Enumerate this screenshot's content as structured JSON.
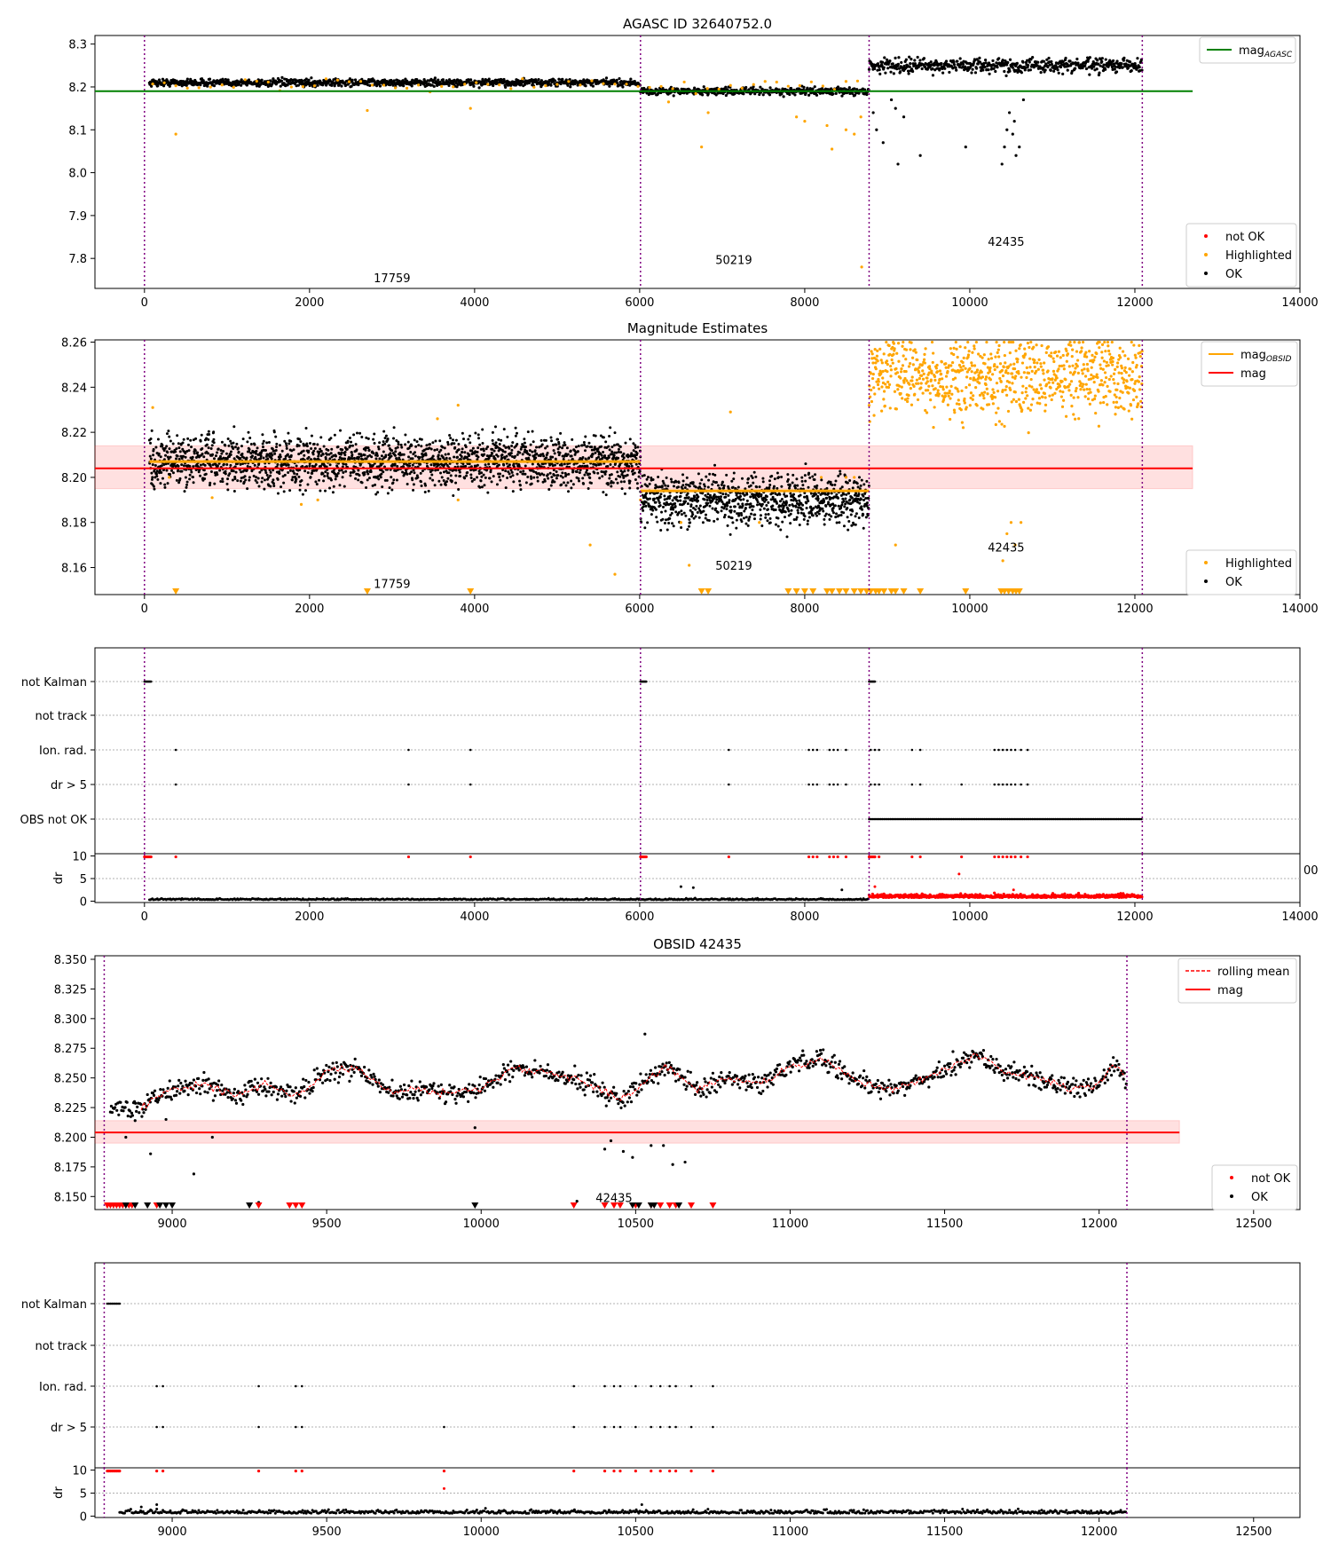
{
  "chart_data": [
    {
      "type": "scatter",
      "title": "AGASC ID 32640752.0",
      "xlim": [
        -600,
        14000
      ],
      "ylim": [
        7.73,
        8.32
      ],
      "xticks": [
        0,
        2000,
        4000,
        6000,
        8000,
        10000,
        12000,
        14000
      ],
      "yticks": [
        7.8,
        7.9,
        8.0,
        8.1,
        8.2,
        8.3
      ],
      "ytick_labels": [
        "7.8",
        "7.9",
        "8.0",
        "8.1",
        "8.2",
        "8.3"
      ],
      "obsid_boundaries": [
        0,
        6010,
        8780,
        12090
      ],
      "obsid_labels": [
        {
          "text": "17759",
          "x": 3000,
          "y": 7.755
        },
        {
          "text": "50219",
          "x": 7140,
          "y": 7.797
        },
        {
          "text": "42435",
          "x": 10440,
          "y": 7.84
        }
      ],
      "segments": [
        {
          "x": [
            60,
            6010
          ],
          "mean": 8.21,
          "spread": 0.006
        },
        {
          "x": [
            6010,
            8780
          ],
          "mean": 8.19,
          "spread": 0.006
        },
        {
          "x": [
            8780,
            12090
          ],
          "mean": 8.25,
          "spread": 0.012
        }
      ],
      "reference_line": {
        "name": "mag_AGASC",
        "value": 8.19,
        "x": [
          -600,
          12700
        ],
        "color": "#008000"
      },
      "highlighted_points": [
        [
          380,
          8.09
        ],
        [
          2700,
          8.145
        ],
        [
          3950,
          8.15
        ],
        [
          6350,
          8.165
        ],
        [
          6750,
          8.06
        ],
        [
          6830,
          8.14
        ],
        [
          7900,
          8.13
        ],
        [
          8000,
          8.12
        ],
        [
          8270,
          8.11
        ],
        [
          8330,
          8.055
        ],
        [
          8500,
          8.1
        ],
        [
          8600,
          8.09
        ],
        [
          8680,
          8.13
        ],
        [
          8690,
          7.78
        ]
      ],
      "dip_points": [
        [
          8830,
          8.14
        ],
        [
          8870,
          8.1
        ],
        [
          8950,
          8.07
        ],
        [
          9050,
          8.17
        ],
        [
          9100,
          8.15
        ],
        [
          9130,
          8.02
        ],
        [
          9200,
          8.13
        ],
        [
          9400,
          8.04
        ],
        [
          9950,
          8.06
        ],
        [
          10390,
          8.02
        ],
        [
          10420,
          8.06
        ],
        [
          10450,
          8.1
        ],
        [
          10480,
          8.14
        ],
        [
          10520,
          8.09
        ],
        [
          10540,
          8.12
        ],
        [
          10560,
          8.04
        ],
        [
          10600,
          8.06
        ],
        [
          10650,
          8.17
        ]
      ],
      "legends": [
        {
          "position": "upper right",
          "entries": [
            {
              "label": "mag",
              "subscript": "AGASC",
              "marker": "line",
              "color": "#008000"
            }
          ]
        },
        {
          "position": "lower right",
          "entries": [
            {
              "label": "not OK",
              "marker": "dot",
              "color": "#ff0000"
            },
            {
              "label": "Highlighted",
              "marker": "dot",
              "color": "#ffa500"
            },
            {
              "label": "OK",
              "marker": "dot",
              "color": "#000000"
            }
          ]
        }
      ]
    },
    {
      "type": "scatter",
      "title": "Magnitude Estimates",
      "xlim": [
        -600,
        14000
      ],
      "ylim": [
        8.148,
        8.261
      ],
      "xticks": [
        0,
        2000,
        4000,
        6000,
        8000,
        10000,
        12000,
        14000
      ],
      "yticks": [
        8.16,
        8.18,
        8.2,
        8.22,
        8.24,
        8.26
      ],
      "ytick_labels": [
        "8.16",
        "8.18",
        "8.20",
        "8.22",
        "8.24",
        "8.26"
      ],
      "obsid_boundaries": [
        0,
        6010,
        8780,
        12090
      ],
      "obsid_labels": [
        {
          "text": "17759",
          "x": 3000,
          "y": 8.153
        },
        {
          "text": "50219",
          "x": 7140,
          "y": 8.161
        },
        {
          "text": "42435",
          "x": 10440,
          "y": 8.169
        }
      ],
      "segments": [
        {
          "x": [
            60,
            6010
          ],
          "mean": 8.207,
          "spread": 0.008,
          "mag_obsid": 8.207
        },
        {
          "x": [
            6010,
            8780
          ],
          "mean": 8.19,
          "spread": 0.008,
          "mag_obsid": 8.194
        },
        {
          "x": [
            8780,
            12090
          ],
          "mean": 8.245,
          "spread": 0.012
        }
      ],
      "mag_line": {
        "name": "mag",
        "value": 8.204,
        "band": [
          8.195,
          8.214
        ],
        "x": [
          -600,
          12700
        ],
        "color": "#ff0000"
      },
      "highlighted_points": [
        [
          100,
          8.231
        ],
        [
          300,
          8.2
        ],
        [
          820,
          8.191
        ],
        [
          1900,
          8.188
        ],
        [
          2100,
          8.19
        ],
        [
          3550,
          8.226
        ],
        [
          3800,
          8.19
        ],
        [
          3800,
          8.232
        ],
        [
          5400,
          8.17
        ],
        [
          5700,
          8.157
        ],
        [
          6010,
          8.19
        ],
        [
          6500,
          8.18
        ],
        [
          6600,
          8.161
        ],
        [
          7100,
          8.229
        ],
        [
          7450,
          8.18
        ],
        [
          8200,
          8.2
        ],
        [
          8500,
          8.2
        ],
        [
          8600,
          8.2
        ]
      ],
      "dip_points": [
        [
          9100,
          8.17
        ],
        [
          10400,
          8.163
        ],
        [
          10450,
          8.175
        ],
        [
          10500,
          8.18
        ],
        [
          10550,
          8.17
        ],
        [
          10620,
          8.18
        ]
      ],
      "clipped_markers": [
        380,
        2700,
        3950,
        6750,
        6830,
        7800,
        7900,
        8000,
        8100,
        8270,
        8330,
        8420,
        8500,
        8600,
        8680,
        8750,
        8800,
        8860,
        8900,
        8960,
        9050,
        9100,
        9200,
        9400,
        9950,
        10380,
        10420,
        10470,
        10520,
        10560,
        10600
      ],
      "legends": [
        {
          "position": "upper right",
          "entries": [
            {
              "label": "mag",
              "subscript": "OBSID",
              "marker": "line",
              "color": "#ffa500"
            },
            {
              "label": "mag",
              "marker": "line",
              "color": "#ff0000"
            }
          ]
        },
        {
          "position": "lower right",
          "entries": [
            {
              "label": "Highlighted",
              "marker": "dot",
              "color": "#ffa500"
            },
            {
              "label": "OK",
              "marker": "dot",
              "color": "#000000"
            }
          ]
        }
      ]
    },
    {
      "type": "scatter",
      "title": "",
      "xlim": [
        -600,
        14000
      ],
      "xticks": [
        0,
        2000,
        4000,
        6000,
        8000,
        10000,
        12000,
        14000
      ],
      "flag_rows": [
        "not Kalman",
        "not track",
        "Ion. rad.",
        "dr > 5",
        "OBS not OK"
      ],
      "obsid_boundaries": [
        0,
        6010,
        8780,
        12090
      ],
      "not_kalman_ranges": [
        [
          0,
          80
        ],
        [
          6010,
          6080
        ],
        [
          8780,
          8850
        ]
      ],
      "ion_rad_x": [
        380,
        3200,
        3950,
        7080,
        8050,
        8100,
        8150,
        8300,
        8350,
        8400,
        8500,
        8800,
        8850,
        8900,
        9300,
        9400,
        10300,
        10350,
        10400,
        10450,
        10500,
        10550,
        10620,
        10700
      ],
      "dr5_x": [
        380,
        3200,
        3950,
        7080,
        8050,
        8100,
        8150,
        8300,
        8350,
        8400,
        8500,
        8800,
        8850,
        8900,
        9300,
        9400,
        9900,
        10300,
        10350,
        10400,
        10450,
        10500,
        10550,
        10620,
        10700
      ],
      "obs_not_ok_range": [
        8780,
        12090
      ],
      "dr_panel": {
        "ylabel": "dr",
        "ylim": [
          -0.3,
          10.5
        ],
        "yticks": [
          0,
          5,
          10
        ],
        "ytick_labels": [
          "0",
          "5",
          "10"
        ],
        "partial_label": "00"
      },
      "dr_outliers": [
        [
          6500,
          3.2
        ],
        [
          6650,
          3
        ],
        [
          8450,
          2.5
        ],
        [
          8850,
          3.2
        ],
        [
          9870,
          6
        ],
        [
          10530,
          2.5
        ]
      ]
    },
    {
      "type": "scatter",
      "title": "OBSID 42435",
      "xlim": [
        8750,
        12650
      ],
      "ylim": [
        8.139,
        8.353
      ],
      "xticks": [
        9000,
        9500,
        10000,
        10500,
        11000,
        11500,
        12000,
        12500
      ],
      "yticks": [
        8.15,
        8.175,
        8.2,
        8.225,
        8.25,
        8.275,
        8.3,
        8.325,
        8.35
      ],
      "ytick_labels": [
        "8.150",
        "8.175",
        "8.200",
        "8.225",
        "8.250",
        "8.275",
        "8.300",
        "8.325",
        "8.350"
      ],
      "obsid_boundaries": [
        8780,
        12090
      ],
      "obsid_labels": [
        {
          "text": "42435",
          "x": 10430,
          "y": 8.149
        }
      ],
      "mean_curve": [
        [
          8900,
          8.225
        ],
        [
          8950,
          8.235
        ],
        [
          9000,
          8.24
        ],
        [
          9100,
          8.245
        ],
        [
          9200,
          8.235
        ],
        [
          9300,
          8.245
        ],
        [
          9400,
          8.235
        ],
        [
          9500,
          8.256
        ],
        [
          9600,
          8.258
        ],
        [
          9700,
          8.238
        ],
        [
          9800,
          8.24
        ],
        [
          9900,
          8.237
        ],
        [
          10000,
          8.24
        ],
        [
          10100,
          8.258
        ],
        [
          10200,
          8.255
        ],
        [
          10300,
          8.25
        ],
        [
          10400,
          8.238
        ],
        [
          10450,
          8.232
        ],
        [
          10500,
          8.24
        ],
        [
          10600,
          8.26
        ],
        [
          10700,
          8.24
        ],
        [
          10800,
          8.25
        ],
        [
          10900,
          8.245
        ],
        [
          11000,
          8.26
        ],
        [
          11100,
          8.266
        ],
        [
          11200,
          8.25
        ],
        [
          11300,
          8.24
        ],
        [
          11400,
          8.245
        ],
        [
          11500,
          8.257
        ],
        [
          11600,
          8.27
        ],
        [
          11700,
          8.255
        ],
        [
          11800,
          8.25
        ],
        [
          11900,
          8.24
        ],
        [
          12000,
          8.245
        ],
        [
          12050,
          8.262
        ],
        [
          12090,
          8.25
        ]
      ],
      "cluster_start": [
        8800,
        8830,
        8.232
      ],
      "mag_line": {
        "name": "mag",
        "value": 8.204,
        "band": [
          8.195,
          8.214
        ],
        "x": [
          8750,
          12260
        ],
        "color": "#ff0000"
      },
      "outlier_points": [
        [
          8850,
          8.2
        ],
        [
          8880,
          8.214
        ],
        [
          8930,
          8.186
        ],
        [
          8980,
          8.215
        ],
        [
          9070,
          8.169
        ],
        [
          9130,
          8.2
        ],
        [
          9280,
          8.145
        ],
        [
          9980,
          8.208
        ],
        [
          10310,
          8.146
        ],
        [
          10400,
          8.19
        ],
        [
          10420,
          8.197
        ],
        [
          10460,
          8.188
        ],
        [
          10490,
          8.183
        ],
        [
          10550,
          8.193
        ],
        [
          10590,
          8.193
        ],
        [
          10620,
          8.177
        ],
        [
          10660,
          8.179
        ],
        [
          10530,
          8.287
        ]
      ],
      "not_ok_markers": [
        8790,
        8800,
        8810,
        8820,
        8830,
        8840,
        8850,
        8860,
        8870,
        8950,
        9280,
        9380,
        9400,
        9420,
        10300,
        10400,
        10430,
        10450,
        10500,
        10550,
        10580,
        10610,
        10630,
        10680,
        10750
      ],
      "ok_markers": [
        8850,
        8880,
        8920,
        8960,
        8980,
        9000,
        9250,
        9980,
        10490,
        10510,
        10550,
        10560,
        10640
      ],
      "legends": [
        {
          "position": "upper right",
          "entries": [
            {
              "label": "rolling mean",
              "marker": "dashed",
              "color": "#ff0000"
            },
            {
              "label": "mag",
              "marker": "line",
              "color": "#ff0000"
            }
          ]
        },
        {
          "position": "lower right",
          "entries": [
            {
              "label": "not OK",
              "marker": "dot",
              "color": "#ff0000"
            },
            {
              "label": "OK",
              "marker": "dot",
              "color": "#000000"
            }
          ]
        }
      ]
    },
    {
      "type": "scatter",
      "title": "",
      "xlim": [
        8750,
        12650
      ],
      "xticks": [
        9000,
        9500,
        10000,
        10500,
        11000,
        11500,
        12000,
        12500
      ],
      "flag_rows": [
        "not Kalman",
        "not track",
        "Ion. rad.",
        "dr > 5"
      ],
      "obsid_boundaries": [
        8780,
        12090
      ],
      "not_kalman_ranges": [
        [
          8790,
          8830
        ]
      ],
      "ion_rad_x": [
        8950,
        8970,
        9280,
        9400,
        9420,
        10300,
        10400,
        10430,
        10450,
        10500,
        10550,
        10580,
        10610,
        10630,
        10680,
        10750
      ],
      "dr5_x": [
        8950,
        8970,
        9280,
        9400,
        9420,
        9880,
        10300,
        10400,
        10430,
        10450,
        10500,
        10550,
        10580,
        10610,
        10630,
        10680,
        10750
      ],
      "dr_panel": {
        "ylabel": "dr",
        "ylim": [
          -0.3,
          10.5
        ],
        "yticks": [
          0,
          5,
          10
        ],
        "ytick_labels": [
          "0",
          "5",
          "10"
        ]
      },
      "dr_outliers": [
        [
          8900,
          2
        ],
        [
          8950,
          2.5
        ],
        [
          9880,
          6
        ],
        [
          10520,
          2.5
        ]
      ]
    }
  ]
}
